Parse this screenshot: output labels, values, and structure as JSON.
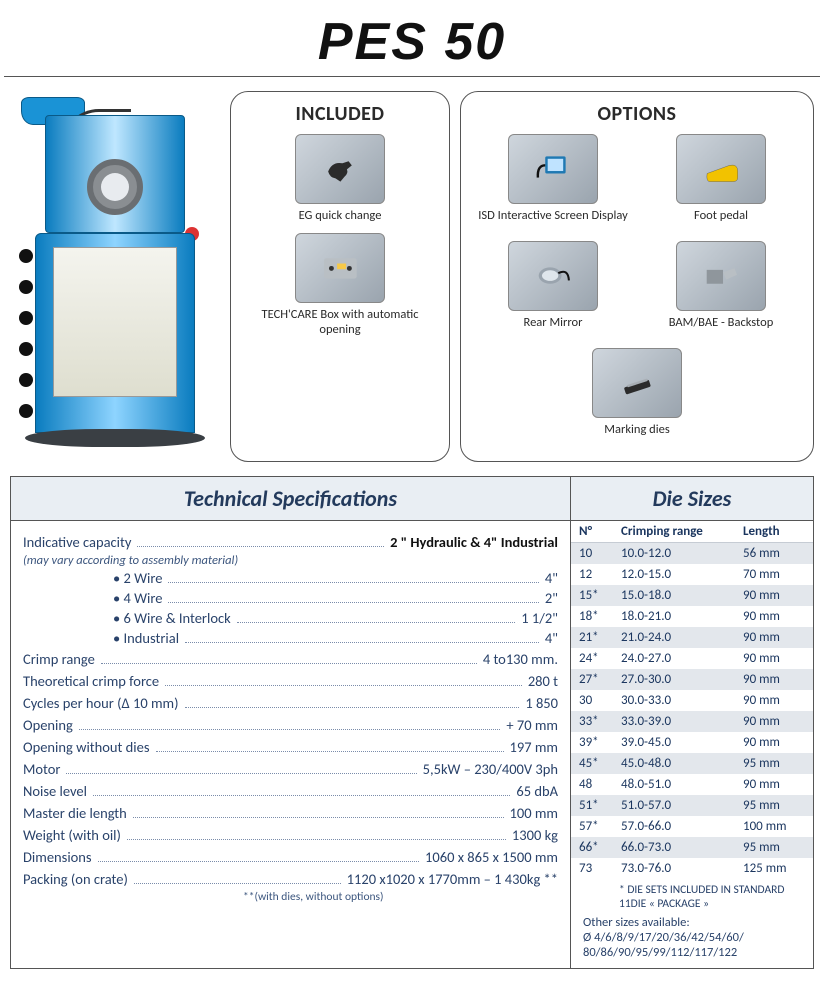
{
  "title": "PES 50",
  "colors": {
    "brand_blue": "#0a7cbf",
    "brand_blue_light": "#8ed4ff",
    "text_primary": "#29426a",
    "zebra": "#e3e7ec",
    "panel_border": "#555555",
    "spec_head_bg": "#e9eef3"
  },
  "included": {
    "heading": "INCLUDED",
    "items": [
      {
        "label": "EG quick change",
        "icon": "gripper"
      },
      {
        "label": "TECH'CARE Box with automatic opening",
        "icon": "control-box"
      }
    ]
  },
  "options": {
    "heading": "OPTIONS",
    "items": [
      {
        "label": "ISD Interactive Screen Display",
        "icon": "screen"
      },
      {
        "label": "Foot pedal",
        "icon": "foot-pedal"
      },
      {
        "label": "Rear Mirror",
        "icon": "mirror"
      },
      {
        "label": "BAM/BAE - Backstop",
        "icon": "backstop"
      },
      {
        "label": "Marking dies",
        "icon": "dies"
      }
    ]
  },
  "spec_headings": {
    "left": "Technical Specifications",
    "right": "Die Sizes"
  },
  "specs": {
    "indicative_capacity_label": "Indicative capacity",
    "indicative_capacity_value": "2 \" Hydraulic & 4\" Industrial",
    "indicative_capacity_note": "(may vary according to assembly material)",
    "materials": [
      {
        "label": "2 Wire",
        "value": "4\""
      },
      {
        "label": "4 Wire",
        "value": "2\""
      },
      {
        "label": "6 Wire & Interlock",
        "value": "1 1/2\""
      },
      {
        "label": "Industrial",
        "value": "4\""
      }
    ],
    "rows": [
      {
        "label": "Crimp range",
        "value": "4 to130 mm."
      },
      {
        "label": "Theoretical crimp force",
        "value": "280 t"
      },
      {
        "label": "Cycles per hour (Δ 10 mm)",
        "value": "1 850"
      },
      {
        "label": "Opening",
        "value": "+ 70 mm"
      },
      {
        "label": "Opening without dies",
        "value": "197 mm"
      },
      {
        "label": "Motor",
        "value": "5,5kW – 230/400V 3ph"
      },
      {
        "label": "Noise level",
        "value": "65 dbA"
      },
      {
        "label": "Master die length",
        "value": "100 mm"
      },
      {
        "label": "Weight (with oil)",
        "value": "1300 kg"
      },
      {
        "label": "Dimensions",
        "value": "1060 x 865 x 1500 mm"
      },
      {
        "label": "Packing (on crate)",
        "value": "1120 x1020 x 1770mm – 1 430kg **"
      }
    ],
    "footnote": "**(with dies, without options)"
  },
  "die_table": {
    "columns": [
      "N°",
      "Crimping range",
      "Length"
    ],
    "rows": [
      {
        "n": "10",
        "range": "10.0-12.0",
        "len": "56 mm"
      },
      {
        "n": "12",
        "range": "12.0-15.0",
        "len": "70 mm"
      },
      {
        "n": "15*",
        "range": "15.0-18.0",
        "len": "90 mm"
      },
      {
        "n": "18*",
        "range": "18.0-21.0",
        "len": "90 mm"
      },
      {
        "n": "21*",
        "range": "21.0-24.0",
        "len": "90 mm"
      },
      {
        "n": "24*",
        "range": "24.0-27.0",
        "len": "90 mm"
      },
      {
        "n": "27*",
        "range": "27.0-30.0",
        "len": "90 mm"
      },
      {
        "n": "30",
        "range": "30.0-33.0",
        "len": "90 mm"
      },
      {
        "n": "33*",
        "range": "33.0-39.0",
        "len": "90 mm"
      },
      {
        "n": "39*",
        "range": "39.0-45.0",
        "len": "90 mm"
      },
      {
        "n": "45*",
        "range": "45.0-48.0",
        "len": "95 mm"
      },
      {
        "n": "48",
        "range": "48.0-51.0",
        "len": "90 mm"
      },
      {
        "n": "51*",
        "range": "51.0-57.0",
        "len": "95 mm"
      },
      {
        "n": "57*",
        "range": "57.0-66.0",
        "len": "100 mm"
      },
      {
        "n": "66*",
        "range": "66.0-73.0",
        "len": "95 mm"
      },
      {
        "n": "73",
        "range": "73.0-76.0",
        "len": "125 mm"
      }
    ],
    "note_star": "* DIE SETS INCLUDED IN STANDARD 11DIE « PACKAGE »",
    "other_sizes_label": "Other sizes available:",
    "other_sizes": "Ø 4/6/8/9/17/20/36/42/54/60/ 80/86/90/95/99/112/117/122"
  }
}
